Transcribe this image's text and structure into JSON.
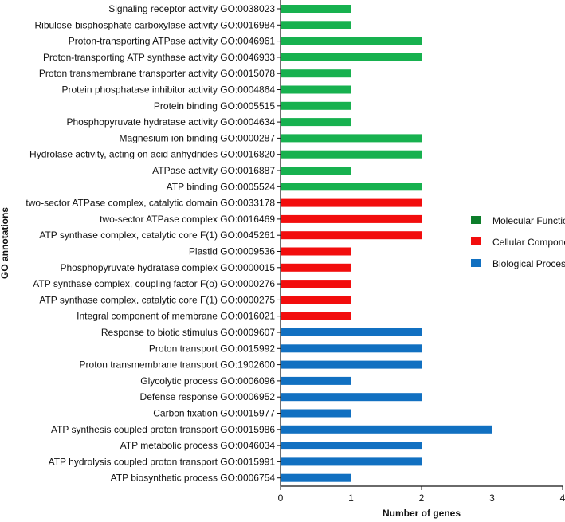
{
  "chart_data": {
    "type": "bar",
    "orientation": "horizontal",
    "title": "",
    "xlabel": "Number of genes",
    "ylabel": "GO annotations",
    "xlim": [
      0,
      4
    ],
    "xticks": [
      0,
      1,
      2,
      3,
      4
    ],
    "grid": false,
    "legend_position": "right",
    "series": [
      {
        "name": "Molecular Function",
        "color": "#17b14f",
        "legend_color": "#0d7d2a"
      },
      {
        "name": "Cellular Component",
        "color": "#f20d0d",
        "legend_color": "#f20d0d"
      },
      {
        "name": "Biological Process",
        "color": "#1170c1",
        "legend_color": "#1170c1"
      }
    ],
    "categories": [
      {
        "label": "Signaling receptor activity GO:0038023",
        "value": 1,
        "series": 0
      },
      {
        "label": "Ribulose-bisphosphate carboxylase activity GO:0016984",
        "value": 1,
        "series": 0
      },
      {
        "label": "Proton-transporting ATPase activity GO:0046961",
        "value": 2,
        "series": 0
      },
      {
        "label": "Proton-transporting ATP synthase activity GO:0046933",
        "value": 2,
        "series": 0
      },
      {
        "label": "Proton transmembrane transporter activity GO:0015078",
        "value": 1,
        "series": 0
      },
      {
        "label": "Protein phosphatase inhibitor activity GO:0004864",
        "value": 1,
        "series": 0
      },
      {
        "label": "Protein binding GO:0005515",
        "value": 1,
        "series": 0
      },
      {
        "label": "Phosphopyruvate hydratase activity GO:0004634",
        "value": 1,
        "series": 0
      },
      {
        "label": "Magnesium ion binding GO:0000287",
        "value": 2,
        "series": 0
      },
      {
        "label": "Hydrolase activity, acting on acid anhydrides GO:0016820",
        "value": 2,
        "series": 0
      },
      {
        "label": "ATPase activity GO:0016887",
        "value": 1,
        "series": 0
      },
      {
        "label": "ATP binding GO:0005524",
        "value": 2,
        "series": 0
      },
      {
        "label": "two-sector ATPase complex, catalytic domain GO:0033178",
        "value": 2,
        "series": 1
      },
      {
        "label": "two-sector ATPase complex GO:0016469",
        "value": 2,
        "series": 1
      },
      {
        "label": "ATP synthase complex, catalytic core F(1) GO:0045261",
        "value": 2,
        "series": 1
      },
      {
        "label": "Plastid GO:0009536",
        "value": 1,
        "series": 1
      },
      {
        "label": "Phosphopyruvate hydratase complex GO:0000015",
        "value": 1,
        "series": 1
      },
      {
        "label": "ATP synthase complex, coupling factor F(o) GO:0000276",
        "value": 1,
        "series": 1
      },
      {
        "label": "ATP synthase complex, catalytic core F(1) GO:0000275",
        "value": 1,
        "series": 1
      },
      {
        "label": "Integral component of membrane GO:0016021",
        "value": 1,
        "series": 1
      },
      {
        "label": "Response to biotic stimulus GO:0009607",
        "value": 2,
        "series": 2
      },
      {
        "label": "Proton transport GO:0015992",
        "value": 2,
        "series": 2
      },
      {
        "label": "Proton transmembrane transport GO:1902600",
        "value": 2,
        "series": 2
      },
      {
        "label": "Glycolytic process GO:0006096",
        "value": 1,
        "series": 2
      },
      {
        "label": "Defense response GO:0006952",
        "value": 2,
        "series": 2
      },
      {
        "label": "Carbon fixation GO:0015977",
        "value": 1,
        "series": 2
      },
      {
        "label": "ATP synthesis coupled proton transport GO:0015986",
        "value": 3,
        "series": 2
      },
      {
        "label": "ATP metabolic process GO:0046034",
        "value": 2,
        "series": 2
      },
      {
        "label": "ATP hydrolysis coupled proton transport GO:0015991",
        "value": 2,
        "series": 2
      },
      {
        "label": "ATP biosynthetic process GO:0006754",
        "value": 1,
        "series": 2
      }
    ]
  }
}
